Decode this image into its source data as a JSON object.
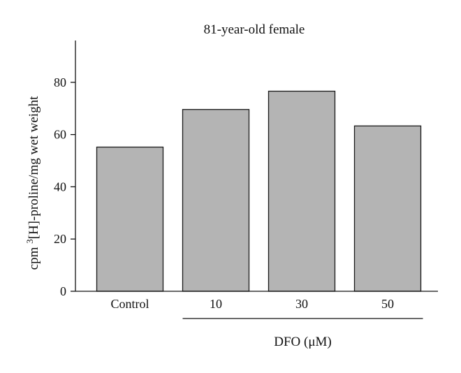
{
  "chart_data": {
    "type": "bar",
    "title": "81-year-old female",
    "ylabel_pre": "cpm ",
    "ylabel_sup": "3",
    "ylabel_post": "[H]-proline/mg wet weight",
    "categories": [
      "Control",
      "10",
      "30",
      "50"
    ],
    "values": [
      55.2,
      69.6,
      76.6,
      63.3
    ],
    "ylim": [
      0,
      96
    ],
    "yticks": [
      0,
      20,
      40,
      60,
      80
    ],
    "group_label": "DFO (μM)",
    "group_covers": [
      "10",
      "30",
      "50"
    ],
    "bar_color": "#b4b4b4",
    "bar_edge_color": "#1a1a1a",
    "grid": false,
    "legend": "none"
  }
}
